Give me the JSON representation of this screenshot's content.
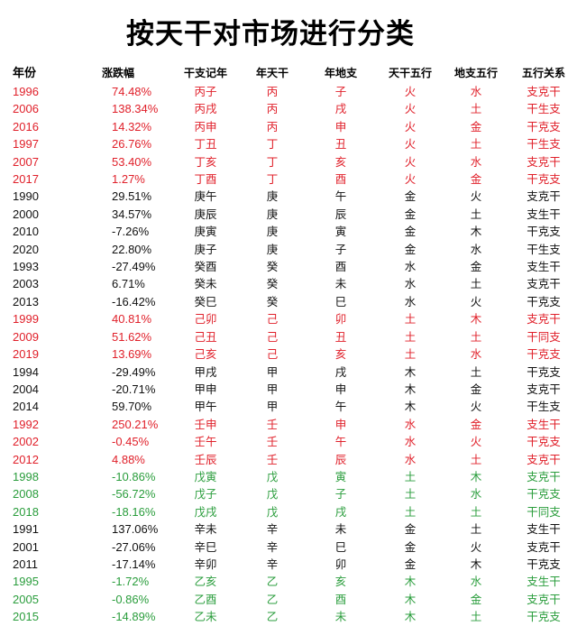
{
  "title": "按天干对市场进行分类",
  "colors": {
    "red": "#e0202a",
    "green": "#2a9d3c",
    "black": "#111111"
  },
  "headers": [
    "年份",
    "涨跌幅",
    "干支记年",
    "年天干",
    "年地支",
    "天干五行",
    "地支五行",
    "五行关系"
  ],
  "rows": [
    {
      "color": "red",
      "cells": [
        "1996",
        "74.48%",
        "丙子",
        "丙",
        "子",
        "火",
        "水",
        "支克干"
      ]
    },
    {
      "color": "red",
      "cells": [
        "2006",
        "138.34%",
        "丙戌",
        "丙",
        "戌",
        "火",
        "土",
        "干生支"
      ]
    },
    {
      "color": "red",
      "cells": [
        "2016",
        "14.32%",
        "丙申",
        "丙",
        "申",
        "火",
        "金",
        "干克支"
      ]
    },
    {
      "color": "red",
      "cells": [
        "1997",
        "26.76%",
        "丁丑",
        "丁",
        "丑",
        "火",
        "土",
        "干生支"
      ]
    },
    {
      "color": "red",
      "cells": [
        "2007",
        "53.40%",
        "丁亥",
        "丁",
        "亥",
        "火",
        "水",
        "支克干"
      ]
    },
    {
      "color": "red",
      "cells": [
        "2017",
        "1.27%",
        "丁酉",
        "丁",
        "酉",
        "火",
        "金",
        "干克支"
      ]
    },
    {
      "color": "black",
      "cells": [
        "1990",
        "29.51%",
        "庚午",
        "庚",
        "午",
        "金",
        "火",
        "支克干"
      ]
    },
    {
      "color": "black",
      "cells": [
        "2000",
        "34.57%",
        "庚辰",
        "庚",
        "辰",
        "金",
        "土",
        "支生干"
      ]
    },
    {
      "color": "black",
      "cells": [
        "2010",
        "-7.26%",
        "庚寅",
        "庚",
        "寅",
        "金",
        "木",
        "干克支"
      ]
    },
    {
      "color": "black",
      "cells": [
        "2020",
        "22.80%",
        "庚子",
        "庚",
        "子",
        "金",
        "水",
        "干生支"
      ]
    },
    {
      "color": "black",
      "cells": [
        "1993",
        "-27.49%",
        "癸酉",
        "癸",
        "酉",
        "水",
        "金",
        "支生干"
      ]
    },
    {
      "color": "black",
      "cells": [
        "2003",
        "6.71%",
        "癸未",
        "癸",
        "未",
        "水",
        "土",
        "支克干"
      ]
    },
    {
      "color": "black",
      "cells": [
        "2013",
        "-16.42%",
        "癸巳",
        "癸",
        "巳",
        "水",
        "火",
        "干克支"
      ]
    },
    {
      "color": "red",
      "cells": [
        "1999",
        "40.81%",
        "己卯",
        "己",
        "卯",
        "土",
        "木",
        "支克干"
      ]
    },
    {
      "color": "red",
      "cells": [
        "2009",
        "51.62%",
        "己丑",
        "己",
        "丑",
        "土",
        "土",
        "干同支"
      ]
    },
    {
      "color": "red",
      "cells": [
        "2019",
        "13.69%",
        "己亥",
        "己",
        "亥",
        "土",
        "水",
        "干克支"
      ]
    },
    {
      "color": "black",
      "cells": [
        "1994",
        "-29.49%",
        "甲戌",
        "甲",
        "戌",
        "木",
        "土",
        "干克支"
      ]
    },
    {
      "color": "black",
      "cells": [
        "2004",
        "-20.71%",
        "甲申",
        "甲",
        "申",
        "木",
        "金",
        "支克干"
      ]
    },
    {
      "color": "black",
      "cells": [
        "2014",
        "59.70%",
        "甲午",
        "甲",
        "午",
        "木",
        "火",
        "干生支"
      ]
    },
    {
      "color": "red",
      "cells": [
        "1992",
        "250.21%",
        "壬申",
        "壬",
        "申",
        "水",
        "金",
        "支生干"
      ]
    },
    {
      "color": "red",
      "cells": [
        "2002",
        "-0.45%",
        "壬午",
        "壬",
        "午",
        "水",
        "火",
        "干克支"
      ]
    },
    {
      "color": "red",
      "cells": [
        "2012",
        "4.88%",
        "壬辰",
        "壬",
        "辰",
        "水",
        "土",
        "支克干"
      ]
    },
    {
      "color": "green",
      "cells": [
        "1998",
        "-10.86%",
        "戊寅",
        "戊",
        "寅",
        "土",
        "木",
        "支克干"
      ]
    },
    {
      "color": "green",
      "cells": [
        "2008",
        "-56.72%",
        "戊子",
        "戊",
        "子",
        "土",
        "水",
        "干克支"
      ]
    },
    {
      "color": "green",
      "cells": [
        "2018",
        "-18.16%",
        "戊戌",
        "戊",
        "戌",
        "土",
        "土",
        "干同支"
      ]
    },
    {
      "color": "black",
      "cells": [
        "1991",
        "137.06%",
        "辛未",
        "辛",
        "未",
        "金",
        "土",
        "支生干"
      ]
    },
    {
      "color": "black",
      "cells": [
        "2001",
        "-27.06%",
        "辛巳",
        "辛",
        "巳",
        "金",
        "火",
        "支克干"
      ]
    },
    {
      "color": "black",
      "cells": [
        "2011",
        "-17.14%",
        "辛卯",
        "辛",
        "卯",
        "金",
        "木",
        "干克支"
      ]
    },
    {
      "color": "green",
      "cells": [
        "1995",
        "-1.72%",
        "乙亥",
        "乙",
        "亥",
        "木",
        "水",
        "支生干"
      ]
    },
    {
      "color": "green",
      "cells": [
        "2005",
        "-0.86%",
        "乙酉",
        "乙",
        "酉",
        "木",
        "金",
        "支克干"
      ]
    },
    {
      "color": "green",
      "cells": [
        "2015",
        "-14.89%",
        "乙未",
        "乙",
        "未",
        "木",
        "土",
        "干克支"
      ]
    }
  ]
}
